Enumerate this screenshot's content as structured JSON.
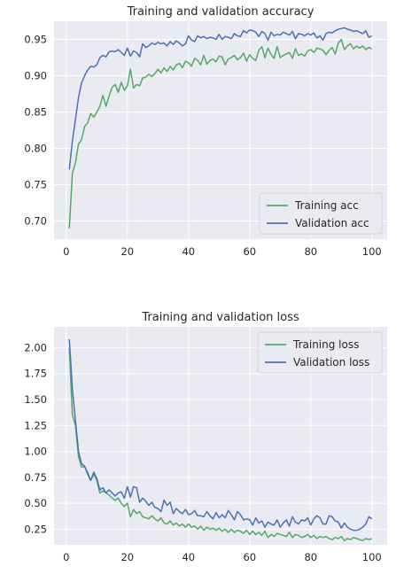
{
  "chart_data": [
    {
      "type": "line",
      "title": "Training and validation accuracy",
      "xlim": [
        -4,
        105
      ],
      "ylim": [
        0.675,
        0.975
      ],
      "xticks": [
        0,
        20,
        40,
        60,
        80,
        100
      ],
      "yticks": [
        0.7,
        0.75,
        0.8,
        0.85,
        0.9,
        0.95
      ],
      "ytick_format": 2,
      "grid": true,
      "legend": "bottom-right",
      "x": [
        1,
        2,
        3,
        4,
        5,
        6,
        7,
        8,
        9,
        10,
        11,
        12,
        13,
        14,
        15,
        16,
        17,
        18,
        19,
        20,
        21,
        22,
        23,
        24,
        25,
        26,
        27,
        28,
        29,
        30,
        31,
        32,
        33,
        34,
        35,
        36,
        37,
        38,
        39,
        40,
        41,
        42,
        43,
        44,
        45,
        46,
        47,
        48,
        49,
        50,
        51,
        52,
        53,
        54,
        55,
        56,
        57,
        58,
        59,
        60,
        61,
        62,
        63,
        64,
        65,
        66,
        67,
        68,
        69,
        70,
        71,
        72,
        73,
        74,
        75,
        76,
        77,
        78,
        79,
        80,
        81,
        82,
        83,
        84,
        85,
        86,
        87,
        88,
        89,
        90,
        91,
        92,
        93,
        94,
        95,
        96,
        97,
        98,
        99,
        100
      ],
      "series": [
        {
          "name": "Training acc",
          "color": "#55A868",
          "values": [
            0.69,
            0.766,
            0.78,
            0.806,
            0.812,
            0.83,
            0.835,
            0.848,
            0.843,
            0.85,
            0.858,
            0.873,
            0.858,
            0.872,
            0.884,
            0.888,
            0.877,
            0.891,
            0.88,
            0.886,
            0.909,
            0.883,
            0.888,
            0.886,
            0.897,
            0.898,
            0.902,
            0.899,
            0.903,
            0.909,
            0.904,
            0.911,
            0.906,
            0.913,
            0.908,
            0.915,
            0.917,
            0.911,
            0.92,
            0.918,
            0.913,
            0.924,
            0.921,
            0.915,
            0.928,
            0.916,
            0.921,
            0.923,
            0.919,
            0.927,
            0.926,
            0.915,
            0.923,
            0.925,
            0.928,
            0.922,
            0.925,
            0.931,
            0.92,
            0.929,
            0.924,
            0.921,
            0.935,
            0.94,
            0.925,
            0.938,
            0.929,
            0.924,
            0.94,
            0.925,
            0.928,
            0.93,
            0.932,
            0.924,
            0.937,
            0.928,
            0.93,
            0.927,
            0.934,
            0.936,
            0.932,
            0.938,
            0.937,
            0.935,
            0.929,
            0.935,
            0.939,
            0.93,
            0.945,
            0.95,
            0.936,
            0.941,
            0.944,
            0.937,
            0.941,
            0.938,
            0.941,
            0.936,
            0.939,
            0.937
          ]
        },
        {
          "name": "Validation acc",
          "color": "#4C72B0",
          "values": [
            0.771,
            0.81,
            0.84,
            0.87,
            0.89,
            0.9,
            0.908,
            0.913,
            0.912,
            0.915,
            0.925,
            0.928,
            0.926,
            0.933,
            0.934,
            0.933,
            0.936,
            0.932,
            0.928,
            0.938,
            0.927,
            0.934,
            0.932,
            0.926,
            0.944,
            0.939,
            0.941,
            0.945,
            0.943,
            0.946,
            0.944,
            0.945,
            0.941,
            0.947,
            0.943,
            0.948,
            0.945,
            0.941,
            0.944,
            0.955,
            0.949,
            0.947,
            0.955,
            0.952,
            0.954,
            0.951,
            0.953,
            0.952,
            0.95,
            0.957,
            0.95,
            0.954,
            0.953,
            0.951,
            0.958,
            0.955,
            0.954,
            0.962,
            0.959,
            0.963,
            0.962,
            0.96,
            0.954,
            0.961,
            0.958,
            0.949,
            0.96,
            0.955,
            0.957,
            0.956,
            0.96,
            0.958,
            0.956,
            0.961,
            0.951,
            0.958,
            0.957,
            0.955,
            0.958,
            0.956,
            0.959,
            0.952,
            0.955,
            0.949,
            0.958,
            0.96,
            0.959,
            0.962,
            0.964,
            0.965,
            0.966,
            0.964,
            0.963,
            0.961,
            0.962,
            0.96,
            0.958,
            0.962,
            0.953,
            0.955
          ]
        }
      ]
    },
    {
      "type": "line",
      "title": "Training and validation loss",
      "xlim": [
        -4,
        105
      ],
      "ylim": [
        0.1,
        2.2
      ],
      "xticks": [
        0,
        20,
        40,
        60,
        80,
        100
      ],
      "yticks": [
        0.25,
        0.5,
        0.75,
        1.0,
        1.25,
        1.5,
        1.75,
        2.0
      ],
      "ytick_format": 2,
      "grid": true,
      "legend": "top-right",
      "x": [
        1,
        2,
        3,
        4,
        5,
        6,
        7,
        8,
        9,
        10,
        11,
        12,
        13,
        14,
        15,
        16,
        17,
        18,
        19,
        20,
        21,
        22,
        23,
        24,
        25,
        26,
        27,
        28,
        29,
        30,
        31,
        32,
        33,
        34,
        35,
        36,
        37,
        38,
        39,
        40,
        41,
        42,
        43,
        44,
        45,
        46,
        47,
        48,
        49,
        50,
        51,
        52,
        53,
        54,
        55,
        56,
        57,
        58,
        59,
        60,
        61,
        62,
        63,
        64,
        65,
        66,
        67,
        68,
        69,
        70,
        71,
        72,
        73,
        74,
        75,
        76,
        77,
        78,
        79,
        80,
        81,
        82,
        83,
        84,
        85,
        86,
        87,
        88,
        89,
        90,
        91,
        92,
        93,
        94,
        95,
        96,
        97,
        98,
        99,
        100
      ],
      "series": [
        {
          "name": "Training loss",
          "color": "#55A868",
          "values": [
            2.0,
            1.35,
            1.25,
            0.95,
            0.85,
            0.85,
            0.8,
            0.72,
            0.78,
            0.72,
            0.6,
            0.62,
            0.6,
            0.58,
            0.55,
            0.53,
            0.55,
            0.5,
            0.47,
            0.5,
            0.37,
            0.44,
            0.4,
            0.42,
            0.37,
            0.36,
            0.35,
            0.38,
            0.35,
            0.33,
            0.36,
            0.31,
            0.3,
            0.33,
            0.29,
            0.31,
            0.28,
            0.3,
            0.27,
            0.3,
            0.27,
            0.28,
            0.25,
            0.28,
            0.24,
            0.27,
            0.25,
            0.26,
            0.24,
            0.26,
            0.23,
            0.25,
            0.22,
            0.25,
            0.22,
            0.24,
            0.23,
            0.21,
            0.24,
            0.2,
            0.23,
            0.2,
            0.22,
            0.19,
            0.23,
            0.17,
            0.2,
            0.18,
            0.21,
            0.2,
            0.19,
            0.18,
            0.22,
            0.17,
            0.2,
            0.19,
            0.17,
            0.18,
            0.2,
            0.17,
            0.19,
            0.16,
            0.18,
            0.17,
            0.18,
            0.16,
            0.15,
            0.17,
            0.16,
            0.18,
            0.14,
            0.16,
            0.15,
            0.17,
            0.16,
            0.15,
            0.14,
            0.16,
            0.15,
            0.16
          ]
        },
        {
          "name": "Validation loss",
          "color": "#4C72B0",
          "values": [
            2.08,
            1.6,
            1.3,
            1.0,
            0.88,
            0.86,
            0.78,
            0.72,
            0.8,
            0.74,
            0.63,
            0.65,
            0.6,
            0.63,
            0.6,
            0.57,
            0.6,
            0.61,
            0.55,
            0.66,
            0.56,
            0.66,
            0.65,
            0.51,
            0.55,
            0.52,
            0.48,
            0.51,
            0.46,
            0.45,
            0.42,
            0.53,
            0.48,
            0.51,
            0.4,
            0.45,
            0.42,
            0.4,
            0.44,
            0.39,
            0.4,
            0.43,
            0.38,
            0.38,
            0.37,
            0.42,
            0.38,
            0.35,
            0.41,
            0.36,
            0.39,
            0.36,
            0.43,
            0.39,
            0.34,
            0.42,
            0.39,
            0.34,
            0.35,
            0.34,
            0.29,
            0.36,
            0.31,
            0.33,
            0.27,
            0.32,
            0.3,
            0.29,
            0.34,
            0.27,
            0.31,
            0.34,
            0.28,
            0.37,
            0.32,
            0.3,
            0.34,
            0.33,
            0.36,
            0.29,
            0.35,
            0.38,
            0.36,
            0.3,
            0.3,
            0.38,
            0.37,
            0.33,
            0.32,
            0.26,
            0.31,
            0.27,
            0.25,
            0.24,
            0.24,
            0.25,
            0.27,
            0.3,
            0.37,
            0.35
          ]
        }
      ]
    }
  ]
}
